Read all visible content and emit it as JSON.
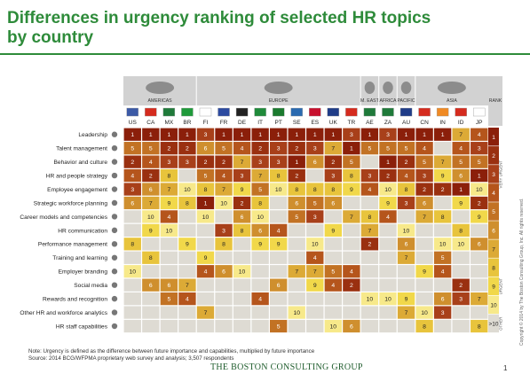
{
  "title": "Differences in urgency ranking of selected HR topics by country",
  "note_line1": "Note: Urgency is defined as the difference between future importance and capabilities, multiplied by future importance",
  "note_line2": "Source: 2014 BCG/WFPMA proprietary web survey and analysis; 3,507 respondents",
  "brand": "THE BOSTON CONSULTING GROUP",
  "page_number": "1",
  "copyright": "Copyright © 2014 by The Boston Consulting Group, Inc. All rights reserved.",
  "colors": {
    "title": "#2e8b3a",
    "rank_1": "#8b1f0a",
    "rank_2": "#9a3010",
    "rank_3": "#a8401a",
    "rank_4": "#b5551c",
    "rank_5": "#c27224",
    "rank_6": "#cf8f2e",
    "rank_7": "#dcaa36",
    "rank_8": "#e8c43c",
    "rank_9": "#f1d84a",
    "rank_10": "#f7e98a",
    "rank_other": "#dedbd3",
    "header": "#d2d2d2"
  },
  "chart_data": {
    "type": "heatmap",
    "title": "Differences in urgency ranking of selected HR topics by country",
    "regions": [
      {
        "name": "AMERICAS",
        "icon": "americas-map-icon",
        "columns": [
          "US",
          "CA",
          "MX",
          "BR"
        ]
      },
      {
        "name": "EUROPE",
        "icon": "europe-map-icon",
        "columns": [
          "FI",
          "FR",
          "DE",
          "IT",
          "PT",
          "SE",
          "ES",
          "UK",
          "TR"
        ]
      },
      {
        "name": "M. EAST",
        "icon": "middle-east-map-icon",
        "columns": [
          "AE"
        ]
      },
      {
        "name": "AFRICA",
        "icon": "africa-map-icon",
        "columns": [
          "ZA"
        ]
      },
      {
        "name": "PACIFIC",
        "icon": "pacific-map-icon",
        "columns": [
          "AU"
        ]
      },
      {
        "name": "ASIA",
        "icon": "asia-map-icon",
        "columns": [
          "CN",
          "IN",
          "ID",
          "JP"
        ]
      }
    ],
    "columns": [
      "US",
      "CA",
      "MX",
      "BR",
      "FI",
      "FR",
      "DE",
      "IT",
      "PT",
      "SE",
      "ES",
      "UK",
      "TR",
      "AE",
      "ZA",
      "AU",
      "CN",
      "IN",
      "ID",
      "JP"
    ],
    "rows": [
      {
        "label": "Leadership",
        "icon": "leadership-icon",
        "values": [
          1,
          1,
          1,
          1,
          3,
          1,
          1,
          1,
          1,
          1,
          1,
          1,
          3,
          1,
          3,
          1,
          1,
          1,
          7,
          4
        ]
      },
      {
        "label": "Talent management",
        "icon": "star-icon",
        "values": [
          5,
          5,
          2,
          2,
          6,
          5,
          4,
          2,
          3,
          2,
          3,
          7,
          1,
          5,
          5,
          5,
          4,
          null,
          4,
          3
        ]
      },
      {
        "label": "Behavior and culture",
        "icon": "behavior-icon",
        "values": [
          2,
          4,
          3,
          3,
          2,
          2,
          7,
          3,
          3,
          1,
          6,
          2,
          5,
          null,
          1,
          2,
          5,
          7,
          5,
          5
        ]
      },
      {
        "label": "HR and people strategy",
        "icon": "strategy-icon",
        "values": [
          4,
          2,
          8,
          null,
          5,
          4,
          3,
          7,
          8,
          2,
          null,
          3,
          8,
          3,
          2,
          4,
          3,
          9,
          6,
          1
        ]
      },
      {
        "label": "Employee engagement",
        "icon": "engagement-icon",
        "values": [
          3,
          6,
          7,
          10,
          8,
          7,
          9,
          5,
          10,
          8,
          8,
          8,
          9,
          4,
          10,
          8,
          2,
          2,
          1,
          10
        ]
      },
      {
        "label": "Strategic workforce planning",
        "icon": "workforce-planning-icon",
        "values": [
          6,
          7,
          9,
          8,
          1,
          10,
          2,
          8,
          null,
          6,
          5,
          6,
          null,
          null,
          9,
          3,
          6,
          null,
          9,
          2
        ]
      },
      {
        "label": "Career models and competencies",
        "icon": "career-icon",
        "values": [
          null,
          10,
          4,
          null,
          10,
          null,
          6,
          10,
          null,
          5,
          3,
          null,
          7,
          8,
          4,
          null,
          7,
          8,
          null,
          9
        ]
      },
      {
        "label": "HR communication",
        "icon": "hr-communication-icon",
        "values": [
          null,
          9,
          10,
          null,
          null,
          3,
          8,
          6,
          4,
          null,
          null,
          9,
          null,
          7,
          null,
          10,
          null,
          null,
          8,
          null
        ]
      },
      {
        "label": "Performance management",
        "icon": "performance-icon",
        "values": [
          8,
          null,
          null,
          9,
          null,
          8,
          null,
          9,
          9,
          null,
          10,
          null,
          null,
          2,
          null,
          6,
          null,
          10,
          10,
          6
        ]
      },
      {
        "label": "Training and learning",
        "icon": "training-icon",
        "values": [
          null,
          8,
          null,
          null,
          9,
          null,
          null,
          null,
          null,
          null,
          4,
          null,
          null,
          null,
          null,
          7,
          null,
          5,
          null,
          null
        ]
      },
      {
        "label": "Employer branding",
        "icon": "branding-icon",
        "values": [
          10,
          null,
          null,
          null,
          4,
          6,
          10,
          null,
          null,
          7,
          7,
          5,
          4,
          null,
          null,
          null,
          9,
          4,
          null,
          null
        ]
      },
      {
        "label": "Social media",
        "icon": "social-media-icon",
        "values": [
          null,
          6,
          6,
          7,
          null,
          null,
          null,
          null,
          6,
          null,
          9,
          4,
          2,
          null,
          null,
          null,
          null,
          null,
          2,
          null
        ]
      },
      {
        "label": "Rewards and recognition",
        "icon": "rewards-icon",
        "values": [
          null,
          null,
          5,
          4,
          null,
          null,
          null,
          4,
          null,
          null,
          null,
          null,
          null,
          10,
          10,
          9,
          null,
          6,
          3,
          7
        ]
      },
      {
        "label": "Other HR and workforce analytics",
        "icon": "analytics-icon",
        "values": [
          null,
          null,
          null,
          null,
          7,
          null,
          null,
          null,
          null,
          10,
          null,
          null,
          null,
          null,
          null,
          7,
          10,
          3,
          null,
          null
        ]
      },
      {
        "label": "HR staff capabilities",
        "icon": "clock-icon",
        "values": [
          null,
          null,
          null,
          null,
          null,
          null,
          null,
          null,
          5,
          null,
          null,
          10,
          6,
          null,
          null,
          null,
          8,
          null,
          null,
          8
        ]
      }
    ],
    "rank_scale": {
      "header": "RANK",
      "levels": [
        "1",
        "2",
        "3",
        "4",
        "5",
        "6",
        "7",
        "8",
        "9",
        "10",
        ">10"
      ],
      "labels": {
        "very_urgent": "VERY URGENT",
        "urgent": "URGENT",
        "other": "OTHER"
      }
    },
    "legend": "right"
  }
}
